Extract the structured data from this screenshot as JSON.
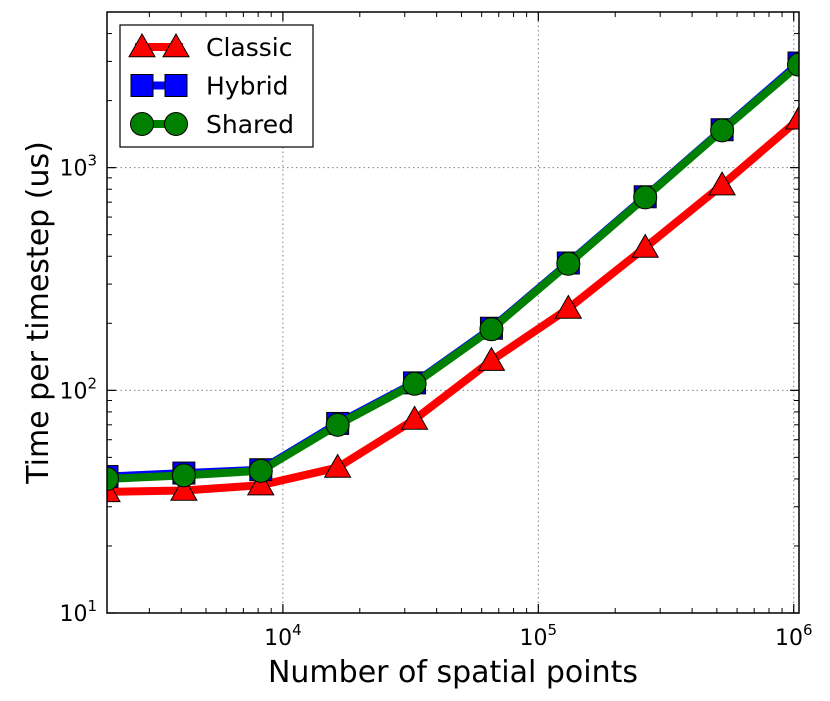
{
  "chart_data": {
    "type": "line",
    "xscale": "log",
    "yscale": "log",
    "xlabel": "Number of spatial points",
    "ylabel": "Time per timestep (us)",
    "xlim": [
      2048,
      1048576
    ],
    "ylim": [
      10,
      5000
    ],
    "x": [
      2048,
      4096,
      8192,
      16384,
      32768,
      65536,
      131072,
      262144,
      524288,
      1048576
    ],
    "grid": true,
    "legend_position": "top-left",
    "x_ticks": [
      {
        "value": 10000,
        "base": "10",
        "exp": "4"
      },
      {
        "value": 100000,
        "base": "10",
        "exp": "5"
      },
      {
        "value": 1000000,
        "base": "10",
        "exp": "6"
      }
    ],
    "y_ticks": [
      {
        "value": 10,
        "base": "10",
        "exp": "1"
      },
      {
        "value": 100,
        "base": "10",
        "exp": "2"
      },
      {
        "value": 1000,
        "base": "10",
        "exp": "3"
      }
    ],
    "series": [
      {
        "name": "Classic",
        "color": "#ff0000",
        "marker": "triangle",
        "values": [
          35,
          35.5,
          37.5,
          45,
          74,
          136,
          233,
          438,
          835,
          1650
        ]
      },
      {
        "name": "Hybrid",
        "color": "#0000ff",
        "marker": "square",
        "values": [
          41,
          42.5,
          44,
          71,
          108,
          190,
          373,
          740,
          1480,
          2950
        ]
      },
      {
        "name": "Shared",
        "color": "#008000",
        "marker": "circle",
        "values": [
          40,
          41.5,
          43.5,
          70,
          107,
          188,
          370,
          735,
          1470,
          2900
        ]
      }
    ]
  }
}
